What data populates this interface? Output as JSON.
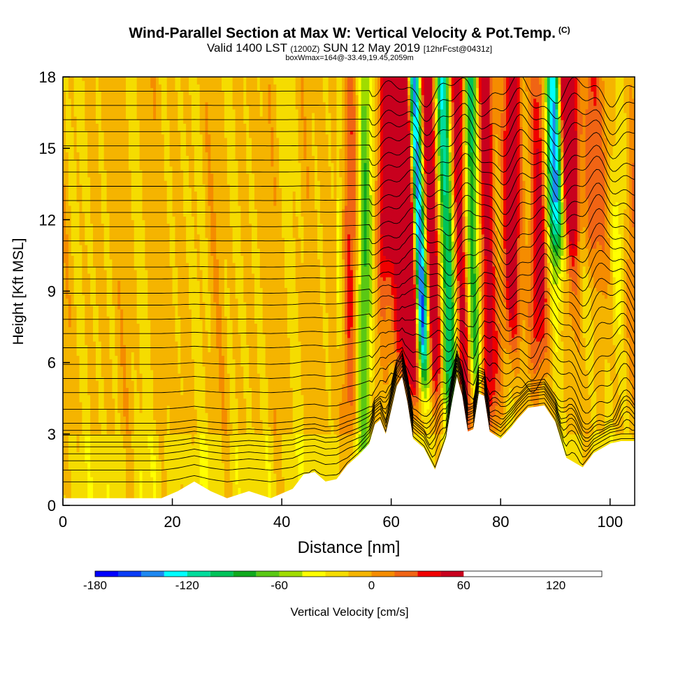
{
  "header": {
    "title": "Wind-Parallel Section at Max W: Vertical Velocity & Pot.Temp.",
    "title_mark": "(C)",
    "valid_label": "Valid 1400 LST",
    "utc_label": "(1200Z)",
    "date_label": "SUN 12 May 2019",
    "forecast_label": "[12hrFcst@0431z]",
    "box_label": "boxWmax=164@-33.49,19.45,2059m"
  },
  "chart_data": {
    "type": "heatmap",
    "title": "Wind-Parallel Section at Max W: Vertical Velocity & Pot.Temp.",
    "xlabel": "Distance [nm]",
    "ylabel": "Height [Kft MSL]",
    "xlim": [
      0,
      104.5
    ],
    "ylim": [
      0,
      18
    ],
    "x_ticks": [
      0,
      20,
      40,
      60,
      80,
      100
    ],
    "y_ticks": [
      0,
      3,
      6,
      9,
      12,
      15,
      18
    ],
    "x_tick_labels": [
      "0",
      "20",
      "40",
      "60",
      "80",
      "100"
    ],
    "y_tick_labels": [
      "0",
      "3",
      "6",
      "9",
      "12",
      "15",
      "18"
    ],
    "grid": false,
    "colorbar": {
      "label": "Vertical Velocity [cm/s]",
      "range": [
        -180,
        150
      ],
      "step": 15,
      "tick_values": [
        -180,
        -120,
        -60,
        0,
        60,
        120
      ],
      "tick_labels": [
        "-180",
        "-120",
        "-60",
        "0",
        "60",
        "120"
      ],
      "colors": [
        "#0000ff",
        "#0a3cf5",
        "#1e88f0",
        "#00ffff",
        "#00dc9c",
        "#00c35a",
        "#10a91e",
        "#5ac814",
        "#a0dc00",
        "#ffff00",
        "#f5dc00",
        "#f5b400",
        "#f58c00",
        "#f06414",
        "#f00000",
        "#c8001e"
      ]
    },
    "terrain_kft": [
      [
        0,
        0.3
      ],
      [
        10,
        0.3
      ],
      [
        18,
        0.3
      ],
      [
        21,
        0.6
      ],
      [
        24,
        1.0
      ],
      [
        27,
        0.6
      ],
      [
        30,
        0.3
      ],
      [
        34,
        0.6
      ],
      [
        38,
        0.3
      ],
      [
        42,
        0.7
      ],
      [
        44,
        1.3
      ],
      [
        46,
        1.4
      ],
      [
        48,
        1.0
      ],
      [
        50,
        1.1
      ],
      [
        52,
        1.7
      ],
      [
        54,
        2.1
      ],
      [
        56,
        2.6
      ],
      [
        57,
        3.4
      ],
      [
        58,
        3.6
      ],
      [
        59,
        3.0
      ],
      [
        60,
        4.0
      ],
      [
        61,
        5.0
      ],
      [
        62,
        5.4
      ],
      [
        63,
        4.3
      ],
      [
        64,
        2.8
      ],
      [
        66,
        2.4
      ],
      [
        68,
        1.5
      ],
      [
        70,
        2.8
      ],
      [
        71,
        4.2
      ],
      [
        72,
        5.4
      ],
      [
        73,
        4.6
      ],
      [
        74,
        3.1
      ],
      [
        75,
        3.2
      ],
      [
        76,
        4.7
      ],
      [
        77,
        4.6
      ],
      [
        78,
        3.1
      ],
      [
        80,
        2.8
      ],
      [
        82,
        3.3
      ],
      [
        83,
        3.6
      ],
      [
        85,
        4.1
      ],
      [
        88,
        4.2
      ],
      [
        90,
        3.5
      ],
      [
        92,
        2.0
      ],
      [
        95,
        1.6
      ],
      [
        97,
        2.2
      ],
      [
        100,
        2.6
      ],
      [
        102,
        2.7
      ],
      [
        104.5,
        2.7
      ]
    ],
    "w_cores": [
      {
        "x": 65.5,
        "amp": -175,
        "sigma": 1.0,
        "zmin": 5.5,
        "tilt": 0.14
      },
      {
        "x": 63.8,
        "amp": 140,
        "sigma": 0.9,
        "zmin": 5.0,
        "tilt": 0.14
      },
      {
        "x": 67.8,
        "amp": 130,
        "sigma": 0.9,
        "zmin": 5.5,
        "tilt": 0.14
      },
      {
        "x": 61.5,
        "amp": 80,
        "sigma": 1.2,
        "zmin": 6.0,
        "tilt": 0.0
      },
      {
        "x": 59.0,
        "amp": 60,
        "sigma": 1.0,
        "zmin": 10.0,
        "tilt": 0.0
      },
      {
        "x": 70.5,
        "amp": -110,
        "sigma": 1.0,
        "zmin": 4.0,
        "tilt": 0.1
      },
      {
        "x": 73.0,
        "amp": 90,
        "sigma": 1.0,
        "zmin": 3.5,
        "tilt": 0.1
      },
      {
        "x": 75.3,
        "amp": -100,
        "sigma": 1.0,
        "zmin": 5.0,
        "tilt": 0.08
      },
      {
        "x": 78.0,
        "amp": 80,
        "sigma": 1.2,
        "zmin": 4.0,
        "tilt": 0.08
      },
      {
        "x": 82.5,
        "amp": 60,
        "sigma": 1.3,
        "zmin": 7.0,
        "tilt": 0.05
      },
      {
        "x": 90.5,
        "amp": -130,
        "sigma": 1.1,
        "zmin": 11.0,
        "tilt": 0.12
      },
      {
        "x": 93.2,
        "amp": 130,
        "sigma": 1.0,
        "zmin": 12.0,
        "tilt": 0.12
      },
      {
        "x": 96.5,
        "amp": 55,
        "sigma": 1.2,
        "zmin": 10.0,
        "tilt": 0.0
      },
      {
        "x": 87.0,
        "amp": 50,
        "sigma": 1.4,
        "zmin": 6.0,
        "tilt": 0.0
      },
      {
        "x": 55.0,
        "amp": -55,
        "sigma": 1.0,
        "zmin": 2.0,
        "tilt": 0.0
      },
      {
        "x": 52.5,
        "amp": 35,
        "sigma": 1.0,
        "zmin": 2.0,
        "tilt": 0.0
      }
    ],
    "theta_levels_kft": [
      0.9,
      1.4,
      1.8,
      2.1,
      2.4,
      2.6,
      2.9,
      3.1,
      3.4,
      4.0,
      4.7,
      5.3,
      5.9,
      6.6,
      7.2,
      7.8,
      8.4,
      8.9,
      9.5,
      10.0,
      10.6,
      11.1,
      11.7,
      12.3,
      12.8,
      13.4,
      14.0,
      14.5,
      15.1,
      15.7,
      16.2,
      16.8,
      17.4
    ]
  }
}
